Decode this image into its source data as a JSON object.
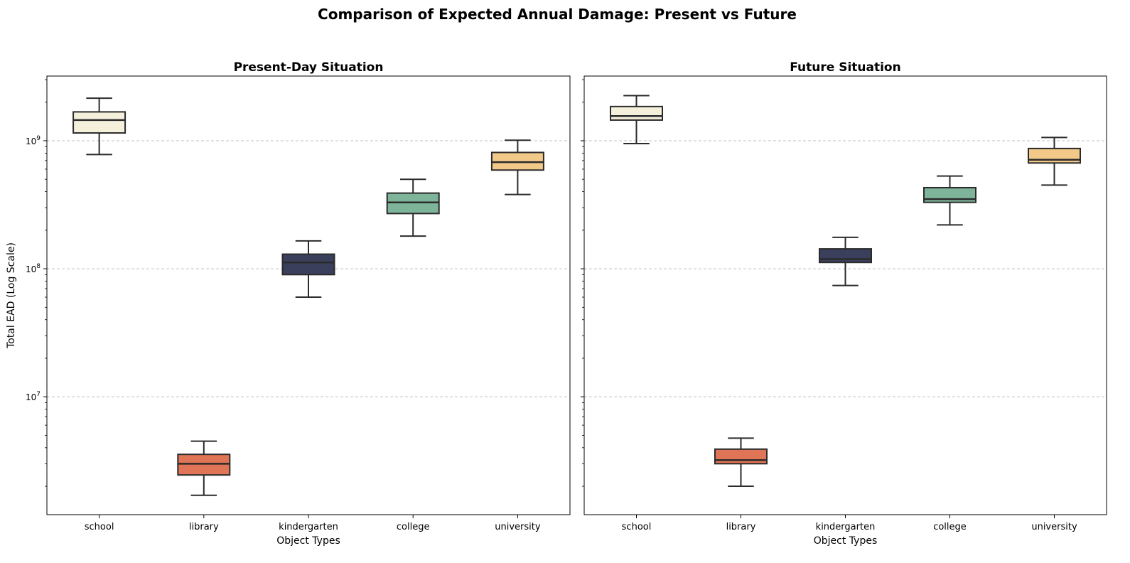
{
  "figure": {
    "title": "Comparison of Expected Annual Damage: Present vs Future"
  },
  "chart_data": [
    {
      "type": "box",
      "title": "Present-Day Situation",
      "xlabel": "Object Types",
      "ylabel": "Total EAD (Log Scale)",
      "yscale": "log",
      "ylim": [
        1200000,
        3200000000
      ],
      "grid": "y major dashed",
      "categories": [
        "school",
        "library",
        "kindergarten",
        "college",
        "university"
      ],
      "colors": [
        "#f5f0dc",
        "#e07456",
        "#3a3f5c",
        "#7db49a",
        "#f3c98a"
      ],
      "boxes": [
        {
          "category": "school",
          "whisker_low": 780000000,
          "q1": 1150000000,
          "median": 1450000000,
          "q3": 1680000000,
          "whisker_high": 2150000000
        },
        {
          "category": "library",
          "whisker_low": 1700000,
          "q1": 2450000,
          "median": 3000000,
          "q3": 3550000,
          "whisker_high": 4500000
        },
        {
          "category": "kindergarten",
          "whisker_low": 60000000,
          "q1": 90000000,
          "median": 112000000,
          "q3": 130000000,
          "whisker_high": 165000000
        },
        {
          "category": "college",
          "whisker_low": 180000000,
          "q1": 270000000,
          "median": 330000000,
          "q3": 390000000,
          "whisker_high": 500000000
        },
        {
          "category": "university",
          "whisker_low": 380000000,
          "q1": 590000000,
          "median": 680000000,
          "q3": 810000000,
          "whisker_high": 1010000000
        }
      ]
    },
    {
      "type": "box",
      "title": "Future Situation",
      "xlabel": "Object Types",
      "ylabel": "",
      "yscale": "log",
      "ylim": [
        1200000,
        3200000000
      ],
      "grid": "y major dashed",
      "categories": [
        "school",
        "library",
        "kindergarten",
        "college",
        "university"
      ],
      "colors": [
        "#f5f0dc",
        "#e07456",
        "#3a3f5c",
        "#7db49a",
        "#f3c98a"
      ],
      "boxes": [
        {
          "category": "school",
          "whisker_low": 950000000,
          "q1": 1450000000,
          "median": 1560000000,
          "q3": 1850000000,
          "whisker_high": 2250000000
        },
        {
          "category": "library",
          "whisker_low": 2000000,
          "q1": 3000000,
          "median": 3200000,
          "q3": 3900000,
          "whisker_high": 4750000
        },
        {
          "category": "kindergarten",
          "whisker_low": 74000000,
          "q1": 112000000,
          "median": 119000000,
          "q3": 143000000,
          "whisker_high": 176000000
        },
        {
          "category": "college",
          "whisker_low": 220000000,
          "q1": 330000000,
          "median": 350000000,
          "q3": 430000000,
          "whisker_high": 530000000
        },
        {
          "category": "university",
          "whisker_low": 450000000,
          "q1": 670000000,
          "median": 710000000,
          "q3": 870000000,
          "whisker_high": 1060000000
        }
      ]
    }
  ]
}
